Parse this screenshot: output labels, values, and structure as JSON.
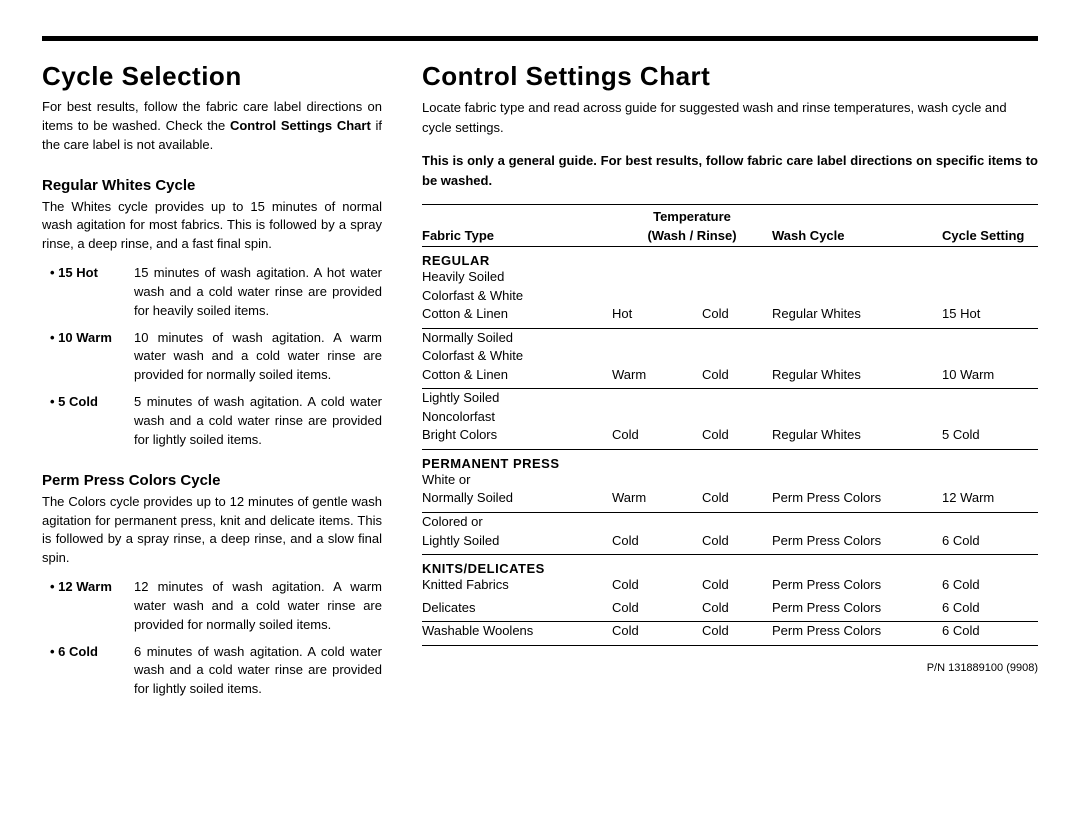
{
  "left": {
    "title": "Cycle Selection",
    "intro_part1": "For best results, follow the fabric care label directions on items to be washed. Check the ",
    "intro_bold": "Control Settings Chart",
    "intro_part2": " if the care label is not available.",
    "cycles": [
      {
        "name": "Regular Whites Cycle",
        "desc": "The Whites cycle provides up to 15 minutes of normal wash agitation for most fabrics. This is followed by a spray rinse, a deep rinse, and a fast final spin.",
        "bullets": [
          {
            "label": "15 Hot",
            "text": "15 minutes of wash agitation. A hot water wash and a cold water rinse are provided for heavily soiled items."
          },
          {
            "label": "10 Warm",
            "text": "10 minutes of wash agitation. A warm water wash and a cold water rinse are provided for normally soiled items."
          },
          {
            "label": "5 Cold",
            "text": "5 minutes of wash agitation. A cold water wash and a cold water rinse are provided for lightly soiled items."
          }
        ]
      },
      {
        "name": "Perm Press Colors Cycle",
        "desc": "The Colors cycle provides up to 12 minutes of gentle wash agitation for permanent press, knit and delicate items. This is followed by a spray rinse, a deep rinse, and a slow final spin.",
        "bullets": [
          {
            "label": "12 Warm",
            "text": "12 minutes of wash agitation. A warm water wash and a cold water rinse are provided for normally soiled items."
          },
          {
            "label": "6 Cold",
            "text": "6 minutes of wash agitation. A cold water wash and a cold water rinse are provided for lightly soiled items."
          }
        ]
      }
    ]
  },
  "right": {
    "title": "Control Settings Chart",
    "intro": "Locate fabric type and read across guide for suggested wash and rinse temperatures, wash cycle and cycle settings.",
    "note": "This is only a general guide.  For best results, follow fabric care label directions on specific items to be washed.",
    "headers": {
      "fabric": "Fabric Type",
      "temp": "Temperature",
      "wash_rinse": "(Wash / Rinse)",
      "cycle": "Wash Cycle",
      "setting": "Cycle Setting"
    },
    "sections": [
      {
        "name": "REGULAR",
        "rows": [
          {
            "lines": [
              "Heavily Soiled",
              "Colorfast & White",
              "Cotton & Linen"
            ],
            "wash": "Hot",
            "rinse": "Cold",
            "cycle": "Regular Whites",
            "setting": "15 Hot"
          },
          {
            "lines": [
              "Normally Soiled",
              "Colorfast & White",
              "Cotton & Linen"
            ],
            "wash": "Warm",
            "rinse": "Cold",
            "cycle": "Regular Whites",
            "setting": "10 Warm"
          },
          {
            "lines": [
              "Lightly Soiled",
              "Noncolorfast",
              "Bright Colors"
            ],
            "wash": "Cold",
            "rinse": "Cold",
            "cycle": "Regular Whites",
            "setting": "5 Cold"
          }
        ]
      },
      {
        "name": "PERMANENT PRESS",
        "rows": [
          {
            "lines": [
              "White or",
              "Normally Soiled"
            ],
            "wash": "Warm",
            "rinse": "Cold",
            "cycle": "Perm Press Colors",
            "setting": "12 Warm"
          },
          {
            "lines": [
              "Colored or",
              "Lightly Soiled"
            ],
            "wash": "Cold",
            "rinse": "Cold",
            "cycle": "Perm Press Colors",
            "setting": "6 Cold"
          }
        ]
      },
      {
        "name": "KNITS/DELICATES",
        "rows": [
          {
            "lines": [
              "Knitted Fabrics"
            ],
            "wash": "Cold",
            "rinse": "Cold",
            "cycle": "Perm Press Colors",
            "setting": "6 Cold",
            "nosep": true
          },
          {
            "lines": [
              "Delicates"
            ],
            "wash": "Cold",
            "rinse": "Cold",
            "cycle": "Perm Press Colors",
            "setting": "6 Cold"
          },
          {
            "lines": [
              "Washable Woolens"
            ],
            "wash": "Cold",
            "rinse": "Cold",
            "cycle": "Perm Press Colors",
            "setting": "6 Cold"
          }
        ]
      }
    ],
    "pn": "P/N 131889100 (9908)"
  }
}
